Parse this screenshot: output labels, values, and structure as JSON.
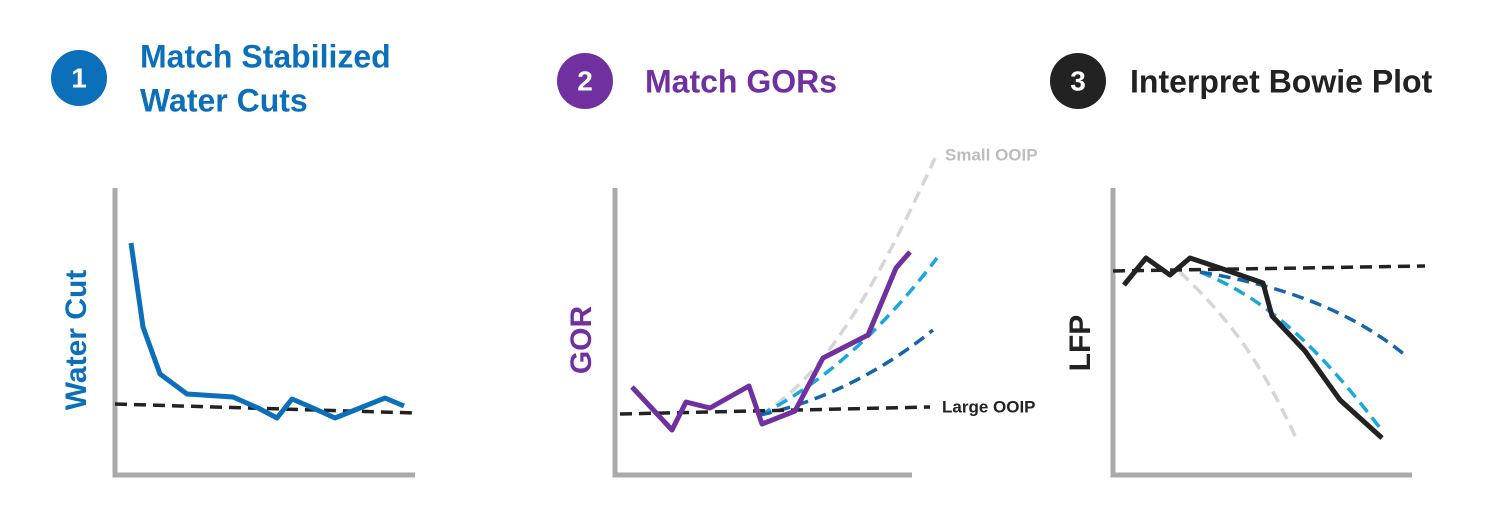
{
  "steps": [
    {
      "number": "1",
      "title": [
        "Match Stabilized",
        "Water Cuts"
      ],
      "axis_label": "Water Cut"
    },
    {
      "number": "2",
      "title": [
        "Match GORs"
      ],
      "axis_label": "GOR",
      "annotations": [
        "Small OOIP",
        "Large OOIP"
      ]
    },
    {
      "number": "3",
      "title": [
        "Interpret Bowie Plot"
      ],
      "axis_label": "LFP"
    }
  ]
}
